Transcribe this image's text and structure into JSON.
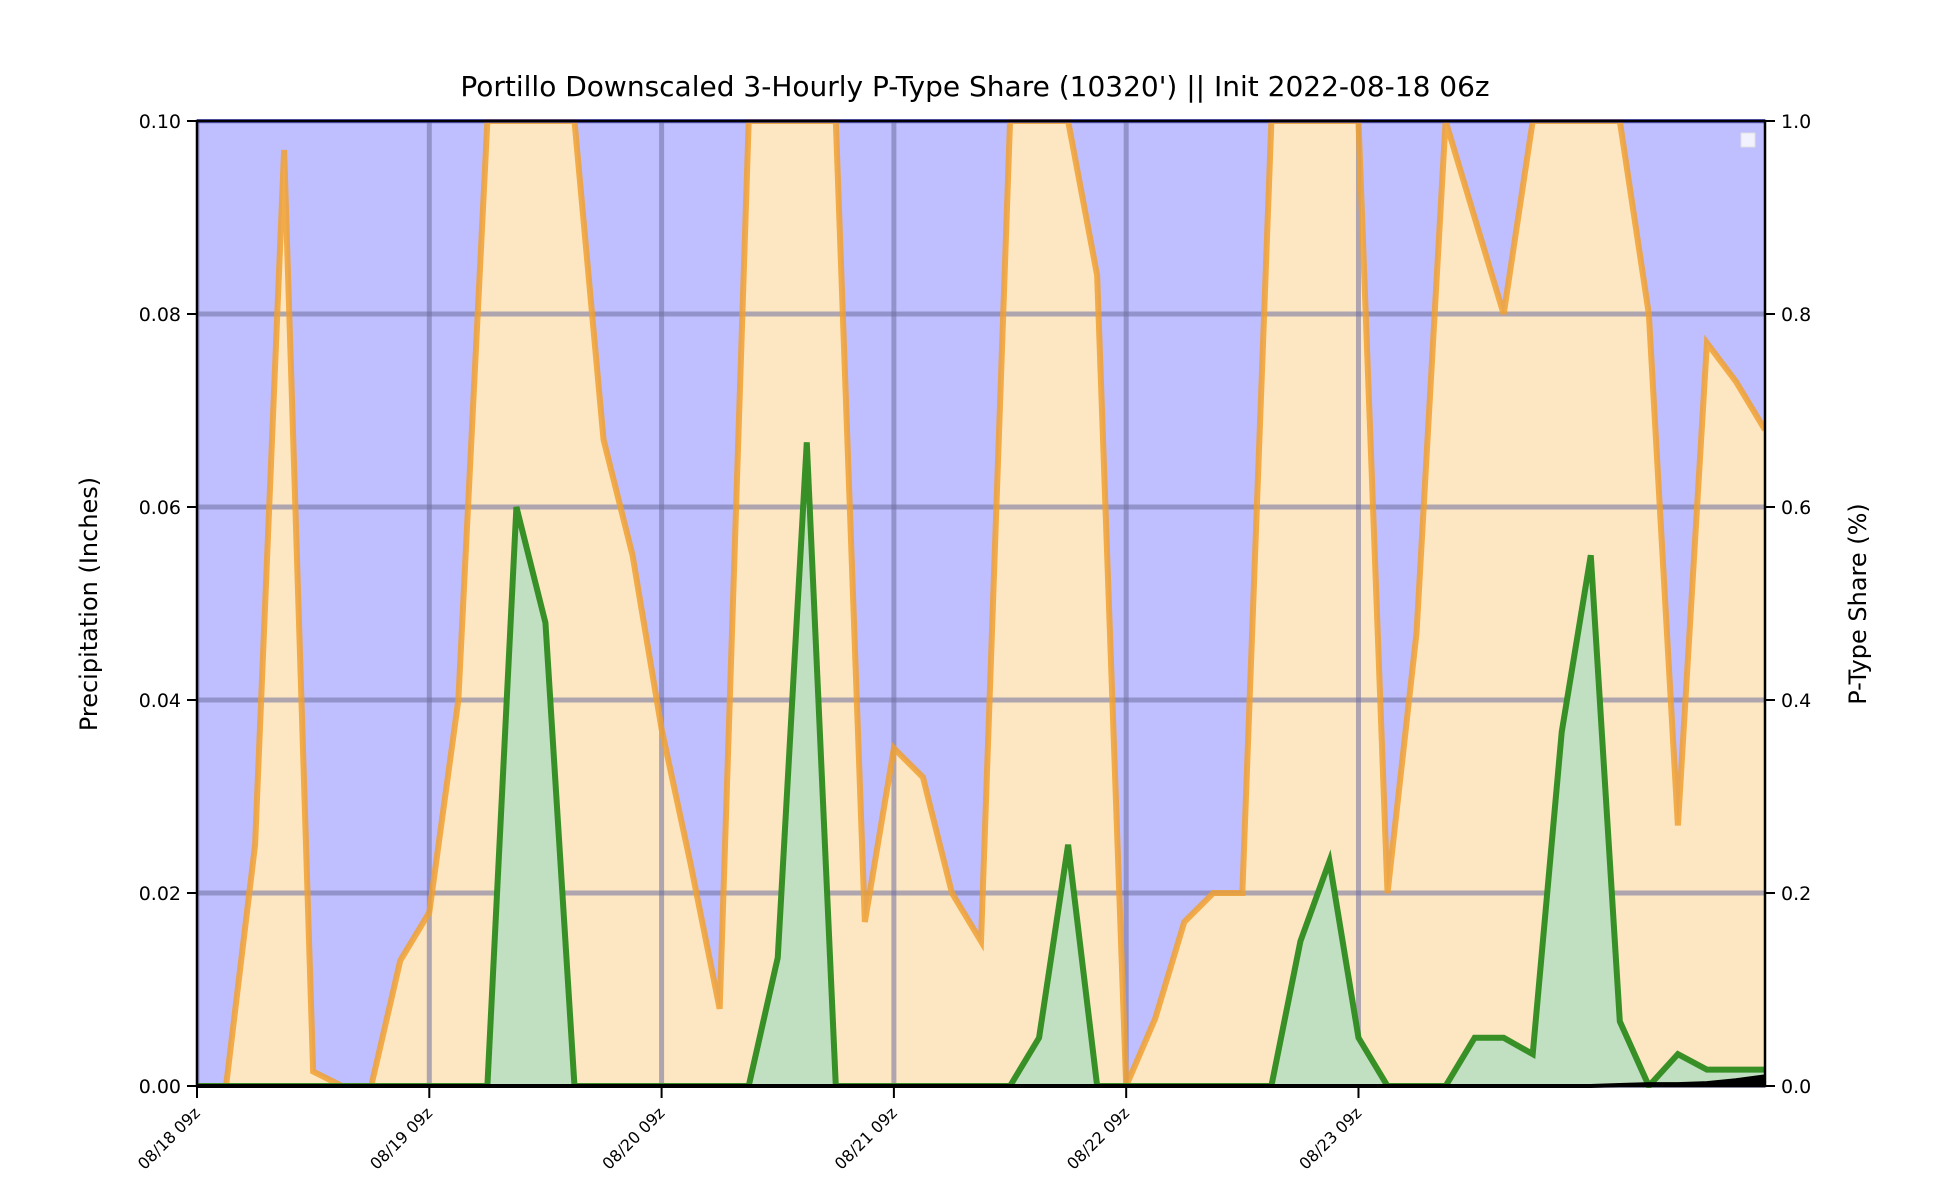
{
  "chart_data": {
    "type": "area",
    "title": "Portillo Downscaled 3-Hourly P-Type Share (10320') || Init 2022-08-18 06z",
    "ylabel": "Precipitation (Inches)",
    "y2label": "P-Type Share (%)",
    "ylim": [
      0,
      0.1
    ],
    "y2lim": [
      0,
      1.0
    ],
    "yticks": [
      "0.00",
      "0.02",
      "0.04",
      "0.06",
      "0.08",
      "0.10"
    ],
    "y2ticks": [
      "0.0",
      "0.2",
      "0.4",
      "0.6",
      "0.8",
      "1.0"
    ],
    "xticks": [
      "08/18 09z",
      "08/19 09z",
      "08/20 09z",
      "08/21 09z",
      "08/22 09z",
      "08/23 09z"
    ],
    "grid": true,
    "legend": "top-right",
    "colors": {
      "background": "#bfbfff",
      "share_fill": "#fde6c2",
      "share_line": "#f0a030",
      "precip_fill": "#c1dfc1",
      "precip_line": "#2e8b1e",
      "accum_line": "#000000",
      "grid_blue": "#8888c8",
      "grid_tan": "#c2aa88"
    },
    "x_hours": [
      0,
      3,
      6,
      9,
      12,
      15,
      18,
      21,
      24,
      27,
      30,
      33,
      36,
      39,
      42,
      45,
      48,
      51,
      54,
      57,
      60,
      63,
      66,
      69,
      72,
      75,
      78,
      81,
      84,
      87,
      90,
      93,
      96,
      99,
      102,
      105,
      108,
      111,
      114,
      117,
      120,
      123,
      126,
      129,
      132,
      135,
      138,
      141
    ],
    "series": [
      {
        "axis": "right",
        "values": [
          0,
          0,
          0.25,
          0.97,
          0.015,
          0,
          0,
          0.13,
          0.18,
          0.4,
          1.0,
          1.0,
          1.0,
          1.0,
          0.67,
          0.55,
          0.37,
          0.23,
          0.08,
          1.0,
          1.0,
          1.0,
          1.0,
          0.17,
          0.35,
          0.32,
          0.2,
          0.15,
          1.0,
          1.0,
          1.0,
          0.84,
          0,
          0.07,
          0.17,
          0.2,
          0.2,
          1.0,
          1.0,
          1.0,
          1.0,
          0.2,
          0.47,
          1.0,
          0.9,
          0.8,
          1.0,
          1.0
        ]
      },
      {
        "axis": "right",
        "values": [
          1.0,
          1.0,
          1.0,
          1.0,
          1.0,
          1.0,
          1.0,
          1.0,
          1.0,
          1.0,
          1.0,
          1.0,
          1.0,
          1.0,
          1.0,
          1.0,
          1.0,
          1.0,
          1.0,
          1.0,
          1.0,
          1.0,
          1.0,
          1.0,
          1.0,
          1.0,
          1.0,
          1.0,
          1.0,
          1.0,
          1.0,
          1.0,
          1.0,
          1.0,
          1.0,
          1.0,
          1.0,
          1.0,
          1.0,
          1.0,
          1.0,
          1.0,
          1.0,
          1.0,
          1.0,
          1.0,
          1.0,
          1.0
        ]
      },
      {
        "axis": "left",
        "values": [
          0,
          0,
          0,
          0,
          0,
          0,
          0,
          0,
          0,
          0,
          0,
          0.06,
          0.048,
          0,
          0,
          0,
          0,
          0,
          0,
          0,
          0.0133,
          0.0667,
          0,
          0,
          0,
          0,
          0,
          0,
          0,
          0.005,
          0.025,
          0,
          0,
          0,
          0,
          0,
          0,
          0,
          0.015,
          0.0233,
          0.005,
          0,
          0,
          0,
          0.005,
          0.005,
          0.0033,
          0.0367
        ]
      },
      {
        "axis": "left",
        "values": [
          0,
          0,
          0,
          0,
          0,
          0,
          0,
          0,
          0,
          0,
          0,
          0,
          0,
          0,
          0,
          0,
          0,
          0,
          0,
          0,
          0,
          0,
          0,
          0,
          0,
          0,
          0,
          0,
          0,
          0,
          0,
          0,
          0,
          0,
          0,
          0,
          0,
          0,
          0,
          0,
          0,
          0,
          0,
          0,
          0,
          0,
          0,
          0
        ]
      }
    ],
    "tail": {
      "x_hours": [
        141,
        144,
        147,
        150,
        153,
        156,
        159,
        162
      ],
      "share": [
        1.0,
        1.0,
        1.0,
        0.8,
        0.27,
        0.77,
        0.73,
        0.68
      ],
      "precip": [
        0.0367,
        0.055,
        0.0067,
        0,
        0.0033,
        0.0017,
        0.0017,
        0.0017
      ],
      "accum": [
        0,
        0,
        0.0001,
        0.0002,
        0.0002,
        0.0003,
        0.0006,
        0.001
      ]
    }
  }
}
